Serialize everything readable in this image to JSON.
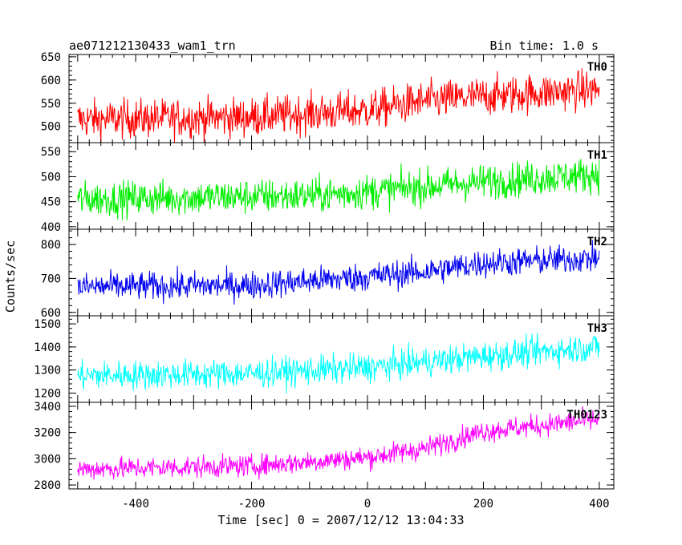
{
  "header": {
    "left_title": "ae071212130433_wam1_trn",
    "right_title": "Bin time: 1.0 s"
  },
  "axes": {
    "xlabel": "Time [sec] 0 = 2007/12/12 13:04:33",
    "ylabel": "Counts/sec"
  },
  "chart_data": {
    "type": "line",
    "title": "ae071212130433_wam1_trn",
    "subtitle": "Bin time: 1.0 s",
    "xlabel": "Time [sec] 0 = 2007/12/12 13:04:33",
    "ylabel": "Counts/sec",
    "xlim": [
      -515,
      425
    ],
    "x_ticks": [
      -400,
      -200,
      0,
      200,
      400
    ],
    "x_range": [
      -500,
      400
    ],
    "bin_time": 1.0,
    "grid": false,
    "legend": "none",
    "panels": [
      {
        "name": "TH0",
        "color": "#ff0000",
        "ylim": [
          465,
          655
        ],
        "yticks": [
          500,
          550,
          600,
          650
        ],
        "trend": [
          [
            -500,
            515
          ],
          [
            -200,
            520
          ],
          [
            0,
            535
          ],
          [
            100,
            555
          ],
          [
            200,
            565
          ],
          [
            400,
            580
          ]
        ],
        "noise": 30
      },
      {
        "name": "TH1",
        "color": "#00ee00",
        "ylim": [
          395,
          568
        ],
        "yticks": [
          400,
          450,
          500,
          550
        ],
        "trend": [
          [
            -500,
            455
          ],
          [
            -100,
            462
          ],
          [
            0,
            470
          ],
          [
            200,
            490
          ],
          [
            400,
            505
          ]
        ],
        "noise": 25
      },
      {
        "name": "TH2",
        "color": "#0000ee",
        "ylim": [
          590,
          845
        ],
        "yticks": [
          600,
          700,
          800
        ],
        "trend": [
          [
            -500,
            675
          ],
          [
            -200,
            680
          ],
          [
            0,
            705
          ],
          [
            100,
            720
          ],
          [
            200,
            745
          ],
          [
            400,
            760
          ]
        ],
        "noise": 30
      },
      {
        "name": "TH3",
        "color": "#00ffff",
        "ylim": [
          1160,
          1535
        ],
        "yticks": [
          1200,
          1300,
          1400,
          1500
        ],
        "trend": [
          [
            -500,
            1275
          ],
          [
            -200,
            1285
          ],
          [
            0,
            1310
          ],
          [
            200,
            1360
          ],
          [
            400,
            1400
          ]
        ],
        "noise": 45
      },
      {
        "name": "TH0123",
        "color": "#ff00ff",
        "ylim": [
          2770,
          3430
        ],
        "yticks": [
          2800,
          3000,
          3200,
          3400
        ],
        "trend": [
          [
            -500,
            2920
          ],
          [
            -200,
            2945
          ],
          [
            0,
            3010
          ],
          [
            100,
            3080
          ],
          [
            200,
            3210
          ],
          [
            400,
            3300
          ]
        ],
        "noise": 60
      }
    ]
  }
}
